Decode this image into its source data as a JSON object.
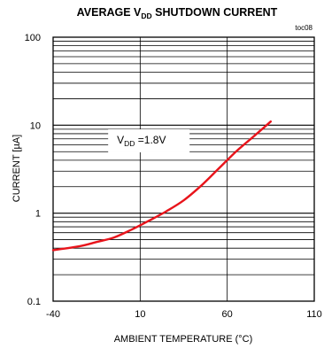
{
  "chart_data": {
    "type": "line",
    "title": {
      "prefix": "AVERAGE V",
      "sub": "DD",
      "suffix": " SHUTDOWN CURRENT"
    },
    "figure_id": "toc08",
    "xlabel": "AMBIENT TEMPERATURE (°C)",
    "ylabel": "CURRENT [µA]",
    "x_scale": "linear",
    "y_scale": "log",
    "xlim": [
      -40,
      110
    ],
    "ylim": [
      0.1,
      100
    ],
    "x_ticks": [
      -40,
      10,
      60,
      110
    ],
    "x_tick_labels": [
      "-40",
      "10",
      "60",
      "110"
    ],
    "y_ticks": [
      0.1,
      1,
      10,
      100
    ],
    "y_tick_labels": [
      "0.1",
      "1",
      "10",
      "100"
    ],
    "grid": true,
    "annotation": {
      "prefix": "V",
      "sub": "DD",
      "suffix": " =1.8V",
      "x": 15,
      "y": 6.8
    },
    "line_color": "#e8141b",
    "series": [
      {
        "x": [
          -40,
          -25,
          -15,
          -5,
          5,
          15,
          25,
          35,
          45,
          55,
          65,
          75,
          85
        ],
        "y": [
          0.38,
          0.42,
          0.47,
          0.53,
          0.65,
          0.82,
          1.05,
          1.4,
          2.05,
          3.2,
          5.0,
          7.4,
          11.0
        ]
      }
    ]
  }
}
